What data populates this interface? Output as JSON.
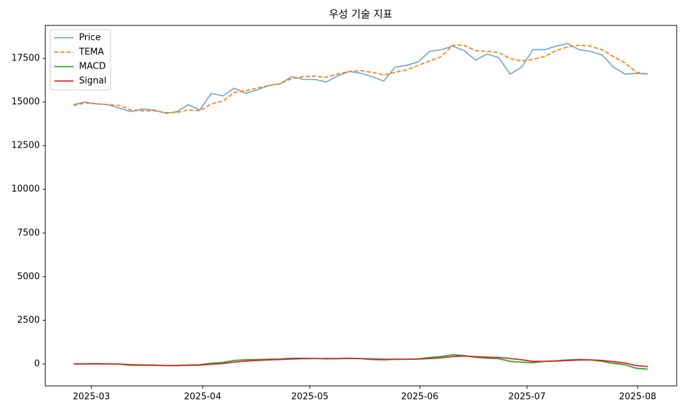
{
  "chart_data": {
    "type": "line",
    "title": "우성 기술 지표",
    "x": [
      null,
      null,
      null,
      null,
      null,
      null,
      null,
      null,
      null,
      null,
      null,
      null,
      null,
      null,
      null,
      null,
      null,
      null,
      null,
      null,
      null,
      null,
      null,
      null,
      null,
      null,
      null,
      null,
      null,
      null,
      null,
      null,
      null,
      null,
      null,
      null,
      null,
      null,
      null,
      null,
      null,
      null,
      null,
      null,
      null,
      null,
      null,
      null,
      null,
      null,
      null
    ],
    "xlim": [
      -2.45,
      52.5
    ],
    "xticks": [
      {
        "value": 1.56,
        "label": "2025-03"
      },
      {
        "value": 11.24,
        "label": "2025-04"
      },
      {
        "value": 20.57,
        "label": "2025-05"
      },
      {
        "value": 30.14,
        "label": "2025-06"
      },
      {
        "value": 39.47,
        "label": "2025-07"
      },
      {
        "value": 49.1,
        "label": "2025-08"
      }
    ],
    "ylim": [
      -1260,
      19390
    ],
    "yticks": [
      0,
      2500,
      5000,
      7500,
      10000,
      12500,
      15000,
      17500
    ],
    "legend": "upper left",
    "series": [
      {
        "name": "Price",
        "color": "#76a9d0",
        "style": "solid",
        "values": [
          14850,
          15000,
          14900,
          14850,
          14650,
          14450,
          14600,
          14550,
          14350,
          14450,
          14850,
          14550,
          15500,
          15350,
          15800,
          15500,
          15700,
          15950,
          16050,
          16450,
          16300,
          16300,
          16150,
          16500,
          16750,
          16650,
          16450,
          16200,
          17000,
          17100,
          17300,
          17900,
          18000,
          18200,
          17950,
          17400,
          17750,
          17550,
          16600,
          17000,
          18000,
          18000,
          18200,
          18350,
          18000,
          17900,
          17700,
          17000,
          16600,
          16650,
          16600
        ]
      },
      {
        "name": "TEMA",
        "color": "#ff7f0e",
        "style": "dashed",
        "values": [
          14800,
          14950,
          14900,
          14850,
          14800,
          14550,
          14500,
          14500,
          14400,
          14400,
          14550,
          14500,
          14900,
          15050,
          15550,
          15650,
          15800,
          15950,
          16050,
          16350,
          16450,
          16480,
          16420,
          16600,
          16750,
          16800,
          16700,
          16550,
          16700,
          16850,
          17100,
          17350,
          17600,
          18250,
          18250,
          17950,
          17900,
          17850,
          17500,
          17350,
          17450,
          17600,
          17950,
          18150,
          18250,
          18200,
          18000,
          17600,
          17250,
          16700,
          16600
        ]
      },
      {
        "name": "MACD",
        "color": "#2ca02c",
        "style": "solid",
        "values": [
          0,
          10,
          10,
          0,
          -20,
          -80,
          -80,
          -80,
          -100,
          -90,
          -60,
          -50,
          40,
          80,
          200,
          240,
          250,
          270,
          280,
          330,
          320,
          310,
          290,
          300,
          330,
          300,
          250,
          230,
          260,
          270,
          290,
          370,
          420,
          520,
          480,
          380,
          330,
          300,
          150,
          100,
          70,
          150,
          180,
          230,
          260,
          230,
          150,
          30,
          -50,
          -250,
          -300
        ]
      },
      {
        "name": "Signal",
        "color": "#d62728",
        "style": "solid",
        "values": [
          -10,
          0,
          5,
          0,
          -10,
          -40,
          -60,
          -70,
          -90,
          -90,
          -80,
          -70,
          -20,
          20,
          100,
          160,
          200,
          230,
          250,
          280,
          300,
          310,
          305,
          305,
          315,
          310,
          290,
          270,
          265,
          265,
          275,
          310,
          350,
          420,
          450,
          420,
          390,
          370,
          310,
          240,
          150,
          140,
          160,
          190,
          220,
          230,
          200,
          130,
          50,
          -100,
          -150
        ]
      }
    ]
  }
}
